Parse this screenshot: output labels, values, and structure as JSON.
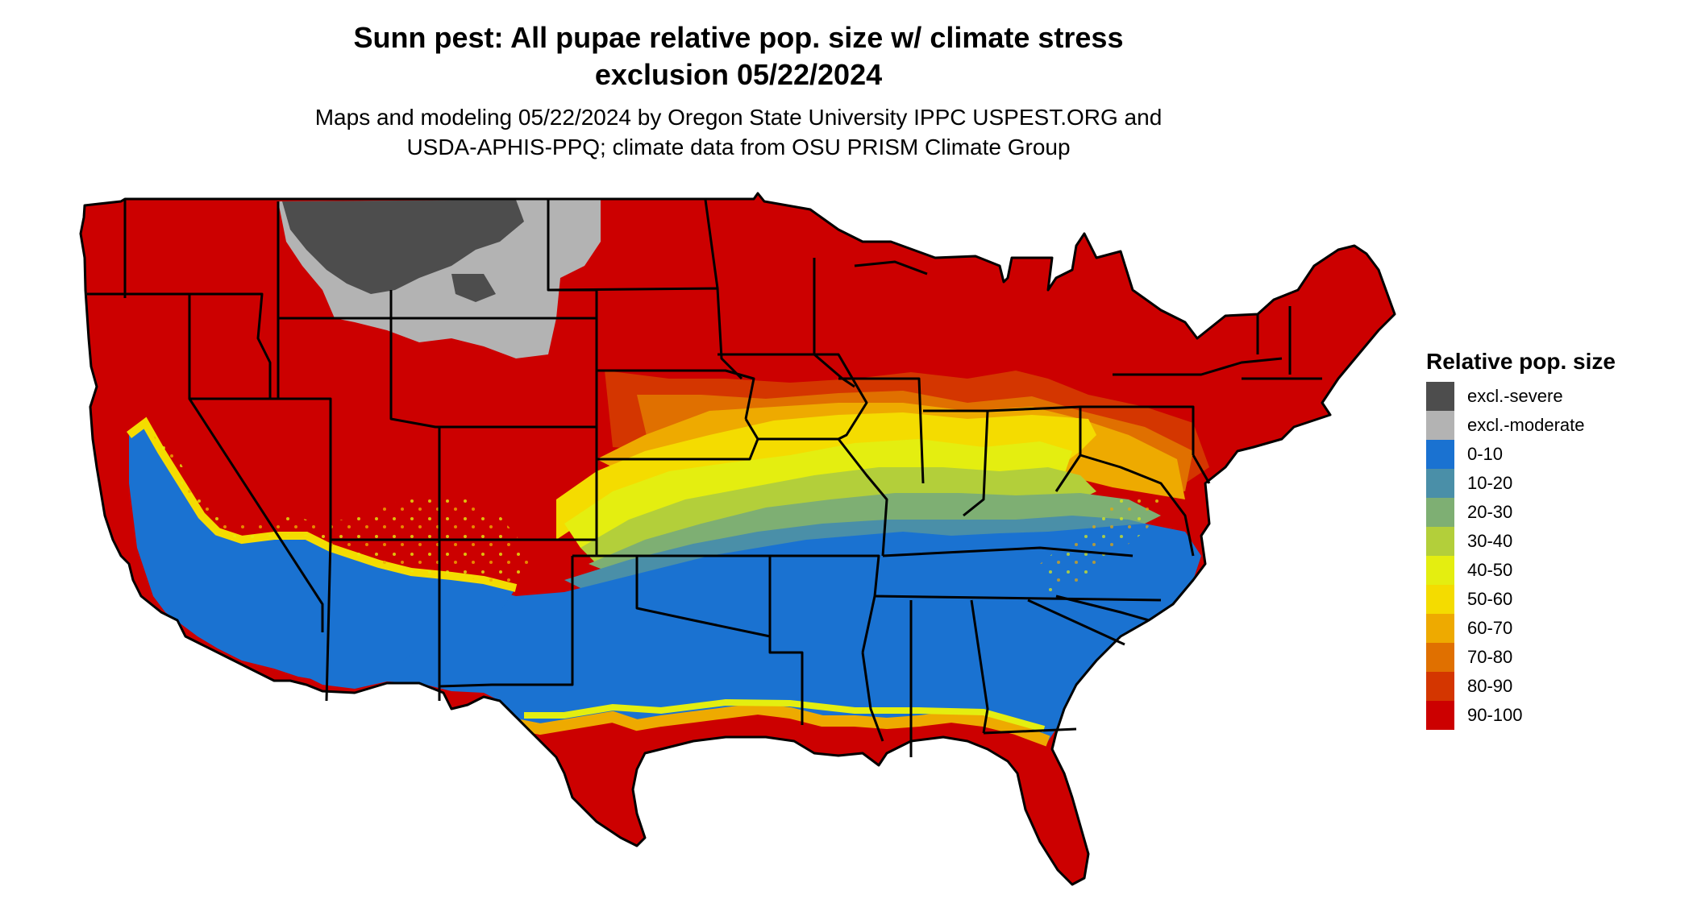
{
  "title": {
    "line1": "Sunn pest: All pupae relative pop. size w/ climate stress",
    "line2": "exclusion 05/22/2024"
  },
  "subtitle": {
    "line1": "Maps and modeling 05/22/2024 by Oregon State University IPPC USPEST.ORG and",
    "line2": "USDA-APHIS-PPQ; climate data from OSU PRISM Climate Group"
  },
  "legend": {
    "title": "Relative pop. size",
    "items": [
      {
        "label": "excl.-severe",
        "color": "#4d4d4d"
      },
      {
        "label": "excl.-moderate",
        "color": "#b3b3b3"
      },
      {
        "label": "0-10",
        "color": "#1a72d1"
      },
      {
        "label": "10-20",
        "color": "#4a8fa8"
      },
      {
        "label": "20-30",
        "color": "#7eaf73"
      },
      {
        "label": "30-40",
        "color": "#b3cf3a"
      },
      {
        "label": "40-50",
        "color": "#e4ee10"
      },
      {
        "label": "50-60",
        "color": "#f4dc00"
      },
      {
        "label": "60-70",
        "color": "#eeaa00"
      },
      {
        "label": "70-80",
        "color": "#e07000"
      },
      {
        "label": "80-90",
        "color": "#d43600"
      },
      {
        "label": "90-100",
        "color": "#cc0000"
      }
    ]
  }
}
